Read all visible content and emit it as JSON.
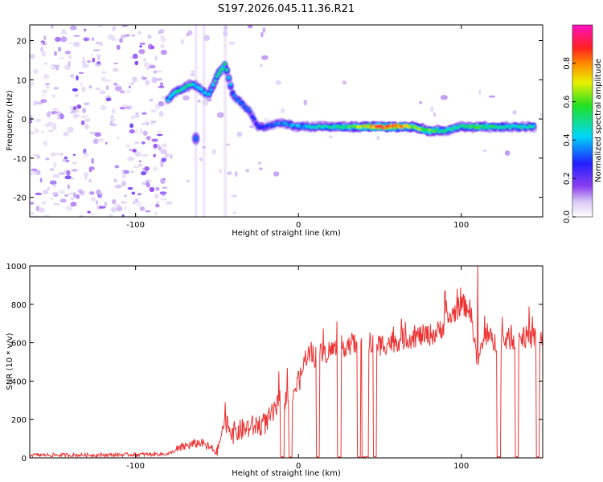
{
  "title": "S197.2026.045.11.36.R21",
  "chart_data": [
    {
      "type": "heatmap",
      "name": "spectrogram",
      "xlabel": "Height of straight line (km)",
      "ylabel": "Frequency (Hz)",
      "xlim": [
        -165,
        150
      ],
      "ylim": [
        -25,
        24
      ],
      "xticks": [
        -100,
        0,
        100
      ],
      "yticks": [
        -20,
        -10,
        0,
        10,
        20
      ],
      "grid": false,
      "colorbar": {
        "label": "Normalized spectral amplitude",
        "range": [
          0.0,
          1.0
        ],
        "ticks": [
          0.0,
          0.2,
          0.4,
          0.6,
          0.8
        ],
        "tick_labels": [
          "0.0",
          "0.2",
          "0.4",
          "0.6",
          "0.8"
        ],
        "colormap": "rainbow (white → violet → blue → cyan → green → yellow → red → magenta)"
      },
      "ridge": {
        "description": "main frequency track (Hz) vs height (km), with normalized amplitude",
        "x": [
          -80,
          -75,
          -70,
          -65,
          -55,
          -50,
          -45,
          -40,
          -35,
          -30,
          -25,
          -20,
          -10,
          0,
          10,
          20,
          30,
          40,
          50,
          60,
          70,
          80,
          90,
          100,
          110,
          120,
          130,
          145
        ],
        "freq": [
          5,
          7,
          8,
          9,
          6,
          11,
          14,
          6,
          4,
          2,
          -2,
          -2,
          -1,
          -2,
          -2,
          -2,
          -2,
          -2,
          -2,
          -2,
          -2,
          -3,
          -3,
          -2,
          -2,
          -2,
          -2,
          -2
        ],
        "amplitude": [
          0.4,
          0.5,
          0.5,
          0.45,
          0.4,
          0.5,
          0.55,
          0.35,
          0.35,
          0.3,
          0.3,
          0.3,
          0.35,
          0.4,
          0.45,
          0.5,
          0.55,
          0.7,
          0.9,
          0.85,
          0.65,
          0.6,
          0.5,
          0.5,
          0.6,
          0.5,
          0.45,
          0.45
        ]
      },
      "secondary_blob": {
        "x": -63,
        "freq": -5,
        "amplitude": 0.35
      }
    },
    {
      "type": "line",
      "name": "snr",
      "xlabel": "Height of straight line (km)",
      "ylabel": "SNR (10 * v/v)",
      "xlim": [
        -165,
        150
      ],
      "ylim": [
        0,
        1000
      ],
      "xticks": [
        -100,
        0,
        100
      ],
      "yticks": [
        0,
        200,
        400,
        600,
        800,
        1000
      ],
      "grid": false,
      "color": "#ee3333",
      "series": [
        {
          "name": "SNR",
          "description": "noisy SNR trace; piecewise trend with dropouts to zero",
          "x": [
            -165,
            -120,
            -80,
            -70,
            -60,
            -50,
            -45,
            -40,
            -30,
            -20,
            -10,
            0,
            5,
            10,
            20,
            30,
            40,
            50,
            60,
            70,
            80,
            85,
            90,
            100,
            105,
            110,
            115,
            120,
            130,
            140,
            150
          ],
          "y": [
            15,
            15,
            20,
            60,
            80,
            30,
            200,
            130,
            160,
            180,
            300,
            380,
            540,
            530,
            560,
            590,
            600,
            590,
            610,
            630,
            640,
            650,
            700,
            800,
            780,
            500,
            640,
            600,
            620,
            630,
            620
          ],
          "dropouts_to_zero_at_x": [
            -10,
            -5,
            12,
            25,
            37,
            40,
            42,
            47,
            123,
            134,
            147
          ],
          "spikes": [
            {
              "x": -45,
              "y": 290
            },
            {
              "x": -12,
              "y": 450
            },
            {
              "x": 0,
              "y": 450
            },
            {
              "x": 90,
              "y": 870
            },
            {
              "x": 110,
              "y": 1000
            }
          ]
        }
      ]
    }
  ]
}
